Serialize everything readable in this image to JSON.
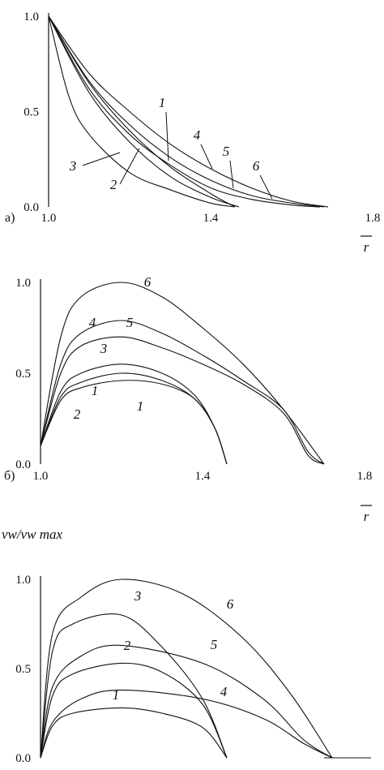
{
  "chart_data": [
    {
      "type": "line",
      "panel_label": "а)",
      "xlabel": "r",
      "ylabel": "",
      "xlim": [
        1.0,
        1.8
      ],
      "ylim": [
        0.0,
        1.0
      ],
      "x_ticks": [
        "1.0",
        "1.4",
        "1.8"
      ],
      "y_ticks": [
        "0.0",
        "0.5",
        "1.0"
      ],
      "series": [
        {
          "name": "1",
          "points": [
            [
              1.0,
              1.0
            ],
            [
              1.1,
              0.65
            ],
            [
              1.2,
              0.4
            ],
            [
              1.3,
              0.21
            ],
            [
              1.4,
              0.07
            ],
            [
              1.46,
              0.0
            ]
          ]
        },
        {
          "name": "2",
          "points": [
            [
              1.0,
              1.0
            ],
            [
              1.1,
              0.6
            ],
            [
              1.2,
              0.34
            ],
            [
              1.3,
              0.16
            ],
            [
              1.4,
              0.05
            ],
            [
              1.47,
              0.0
            ]
          ]
        },
        {
          "name": "3",
          "points": [
            [
              1.0,
              1.0
            ],
            [
              1.05,
              0.58
            ],
            [
              1.1,
              0.38
            ],
            [
              1.2,
              0.18
            ],
            [
              1.3,
              0.09
            ],
            [
              1.4,
              0.02
            ],
            [
              1.46,
              0.0
            ]
          ]
        },
        {
          "name": "4",
          "points": [
            [
              1.0,
              1.0
            ],
            [
              1.1,
              0.7
            ],
            [
              1.2,
              0.5
            ],
            [
              1.3,
              0.33
            ],
            [
              1.4,
              0.2
            ],
            [
              1.5,
              0.1
            ],
            [
              1.6,
              0.03
            ],
            [
              1.69,
              0.0
            ]
          ]
        },
        {
          "name": "5",
          "points": [
            [
              1.0,
              1.0
            ],
            [
              1.1,
              0.66
            ],
            [
              1.2,
              0.43
            ],
            [
              1.3,
              0.26
            ],
            [
              1.4,
              0.14
            ],
            [
              1.5,
              0.06
            ],
            [
              1.6,
              0.02
            ],
            [
              1.68,
              0.0
            ]
          ]
        },
        {
          "name": "6",
          "points": [
            [
              1.0,
              1.0
            ],
            [
              1.1,
              0.62
            ],
            [
              1.2,
              0.38
            ],
            [
              1.3,
              0.22
            ],
            [
              1.4,
              0.1
            ],
            [
              1.5,
              0.04
            ],
            [
              1.6,
              0.01
            ],
            [
              1.67,
              0.0
            ]
          ]
        }
      ]
    },
    {
      "type": "line",
      "panel_label": "б)",
      "xlabel": "r",
      "ylabel": "",
      "xlim": [
        1.0,
        1.8
      ],
      "ylim": [
        0.0,
        1.0
      ],
      "x_ticks": [
        "1.0",
        "1.4",
        "1.8"
      ],
      "y_ticks": [
        "0.0",
        "0.5",
        "1.0"
      ],
      "series": [
        {
          "name": "1",
          "points": [
            [
              1.0,
              0.1
            ],
            [
              1.05,
              0.35
            ],
            [
              1.1,
              0.42
            ],
            [
              1.2,
              0.46
            ],
            [
              1.3,
              0.44
            ],
            [
              1.38,
              0.36
            ],
            [
              1.43,
              0.2
            ],
            [
              1.46,
              0.0
            ]
          ]
        },
        {
          "name": "2",
          "points": [
            [
              1.0,
              0.1
            ],
            [
              1.05,
              0.37
            ],
            [
              1.1,
              0.45
            ],
            [
              1.2,
              0.5
            ],
            [
              1.3,
              0.46
            ],
            [
              1.38,
              0.36
            ],
            [
              1.43,
              0.2
            ],
            [
              1.46,
              0.0
            ]
          ]
        },
        {
          "name": "3",
          "points": [
            [
              1.0,
              0.1
            ],
            [
              1.05,
              0.4
            ],
            [
              1.1,
              0.5
            ],
            [
              1.2,
              0.55
            ],
            [
              1.3,
              0.5
            ],
            [
              1.38,
              0.38
            ],
            [
              1.43,
              0.2
            ],
            [
              1.46,
              0.0
            ]
          ]
        },
        {
          "name": "4",
          "points": [
            [
              1.0,
              0.1
            ],
            [
              1.05,
              0.5
            ],
            [
              1.1,
              0.65
            ],
            [
              1.2,
              0.7
            ],
            [
              1.3,
              0.64
            ],
            [
              1.4,
              0.55
            ],
            [
              1.5,
              0.44
            ],
            [
              1.6,
              0.28
            ],
            [
              1.66,
              0.05
            ],
            [
              1.7,
              0.0
            ]
          ]
        },
        {
          "name": "5",
          "points": [
            [
              1.0,
              0.1
            ],
            [
              1.05,
              0.55
            ],
            [
              1.1,
              0.72
            ],
            [
              1.2,
              0.79
            ],
            [
              1.3,
              0.72
            ],
            [
              1.4,
              0.6
            ],
            [
              1.5,
              0.46
            ],
            [
              1.6,
              0.3
            ],
            [
              1.66,
              0.07
            ],
            [
              1.7,
              0.0
            ]
          ]
        },
        {
          "name": "6",
          "points": [
            [
              1.0,
              0.1
            ],
            [
              1.05,
              0.7
            ],
            [
              1.1,
              0.92
            ],
            [
              1.2,
              1.0
            ],
            [
              1.3,
              0.92
            ],
            [
              1.4,
              0.75
            ],
            [
              1.5,
              0.55
            ],
            [
              1.6,
              0.3
            ],
            [
              1.7,
              0.0
            ]
          ]
        }
      ]
    },
    {
      "type": "line",
      "panel_label": "",
      "xlabel": "",
      "ylabel": "vw/vw max",
      "xlim": [
        1.0,
        1.8
      ],
      "ylim": [
        0.0,
        1.0
      ],
      "x_ticks": [],
      "y_ticks": [
        "0.0",
        "0.5",
        "1.0"
      ],
      "series": [
        {
          "name": "1",
          "points": [
            [
              1.0,
              0.0
            ],
            [
              1.03,
              0.18
            ],
            [
              1.08,
              0.25
            ],
            [
              1.2,
              0.28
            ],
            [
              1.3,
              0.25
            ],
            [
              1.4,
              0.17
            ],
            [
              1.46,
              0.0
            ]
          ]
        },
        {
          "name": "2",
          "points": [
            [
              1.0,
              0.0
            ],
            [
              1.03,
              0.35
            ],
            [
              1.08,
              0.47
            ],
            [
              1.2,
              0.53
            ],
            [
              1.3,
              0.48
            ],
            [
              1.4,
              0.3
            ],
            [
              1.46,
              0.0
            ]
          ]
        },
        {
          "name": "3",
          "points": [
            [
              1.0,
              0.0
            ],
            [
              1.03,
              0.6
            ],
            [
              1.08,
              0.75
            ],
            [
              1.2,
              0.8
            ],
            [
              1.3,
              0.62
            ],
            [
              1.4,
              0.33
            ],
            [
              1.46,
              0.0
            ]
          ]
        },
        {
          "name": "4",
          "points": [
            [
              1.0,
              0.0
            ],
            [
              1.03,
              0.2
            ],
            [
              1.1,
              0.33
            ],
            [
              1.2,
              0.38
            ],
            [
              1.4,
              0.33
            ],
            [
              1.55,
              0.22
            ],
            [
              1.65,
              0.08
            ],
            [
              1.72,
              0.0
            ]
          ]
        },
        {
          "name": "5",
          "points": [
            [
              1.0,
              0.0
            ],
            [
              1.03,
              0.4
            ],
            [
              1.1,
              0.57
            ],
            [
              1.2,
              0.63
            ],
            [
              1.4,
              0.53
            ],
            [
              1.55,
              0.33
            ],
            [
              1.65,
              0.1
            ],
            [
              1.72,
              0.0
            ]
          ]
        },
        {
          "name": "6",
          "points": [
            [
              1.0,
              0.0
            ],
            [
              1.03,
              0.7
            ],
            [
              1.1,
              0.9
            ],
            [
              1.2,
              1.0
            ],
            [
              1.35,
              0.92
            ],
            [
              1.5,
              0.67
            ],
            [
              1.62,
              0.35
            ],
            [
              1.72,
              0.0
            ]
          ]
        }
      ]
    }
  ]
}
